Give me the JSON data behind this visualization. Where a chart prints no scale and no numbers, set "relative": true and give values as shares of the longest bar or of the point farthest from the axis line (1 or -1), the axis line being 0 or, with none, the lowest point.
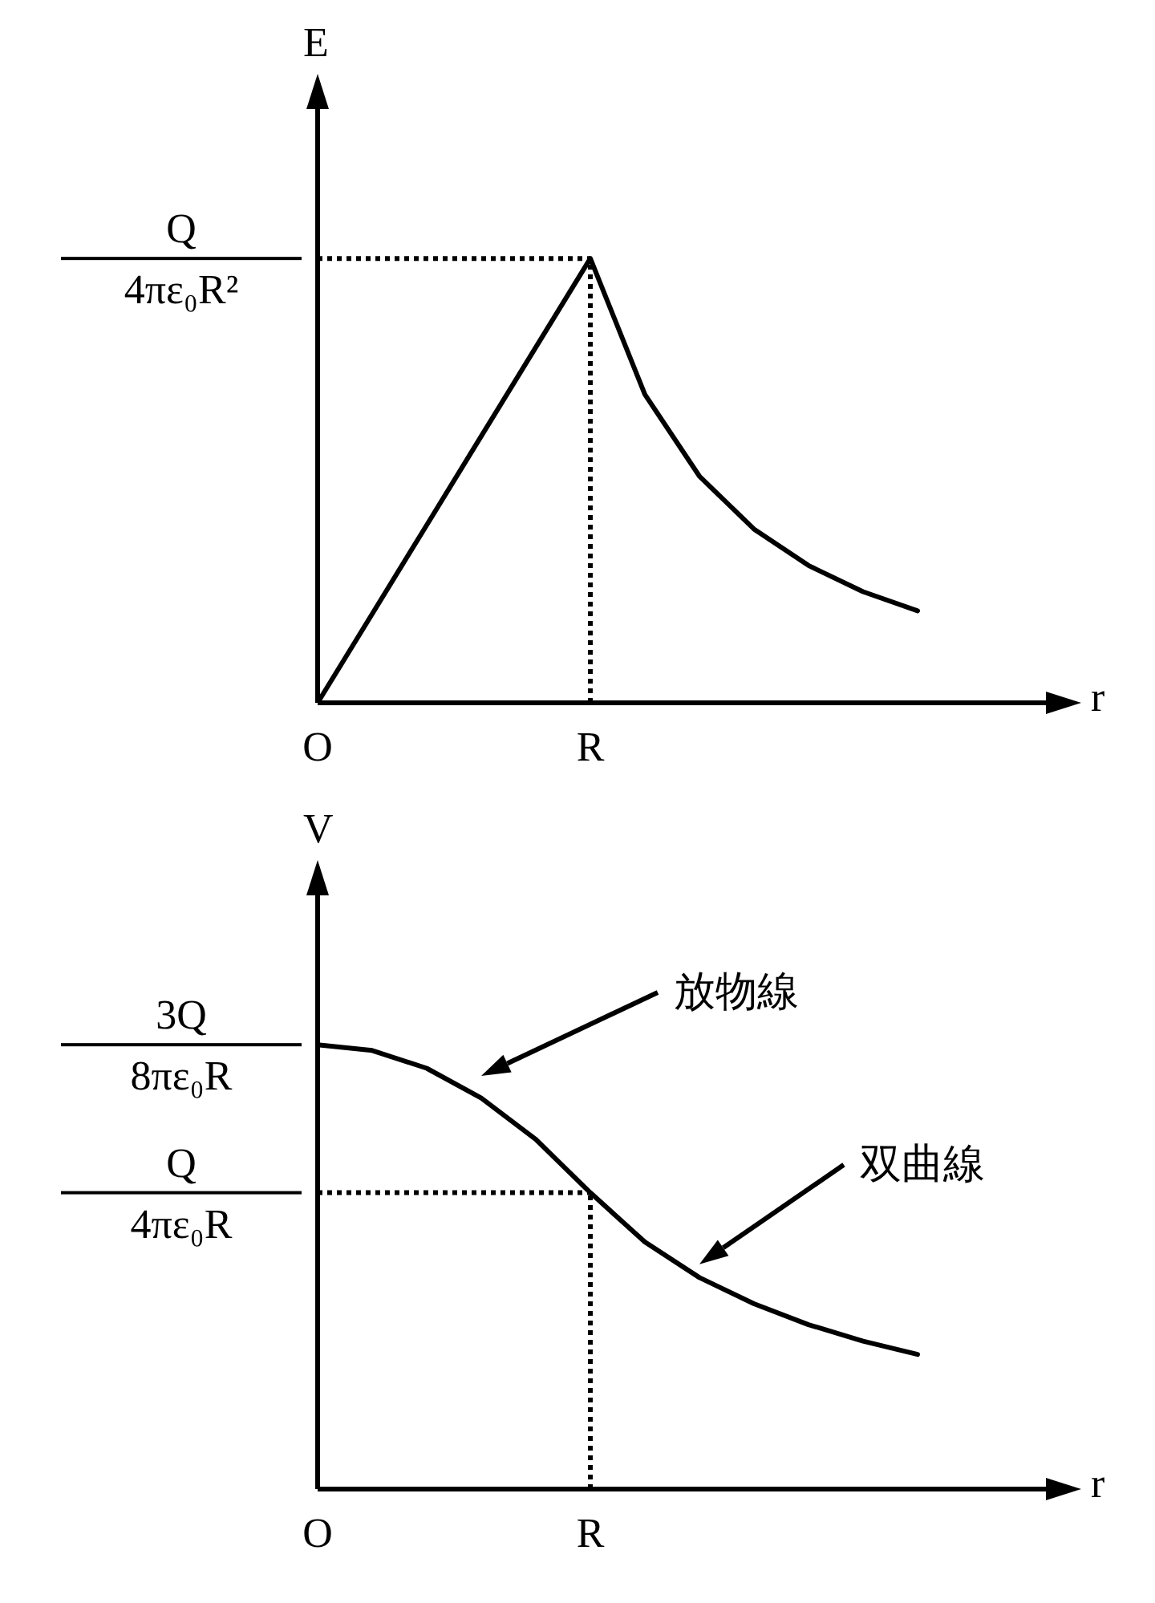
{
  "chart_data": [
    {
      "type": "line",
      "relative": true,
      "xlabel": "r",
      "ylabel": "E",
      "categories": [
        "O",
        null,
        null,
        null,
        null,
        "R",
        null,
        null,
        null,
        null,
        null,
        null
      ],
      "values": [
        0,
        0.2,
        0.4,
        0.6,
        0.8,
        1,
        0.694,
        0.51,
        0.391,
        0.309,
        0.25,
        0.207
      ],
      "color": "#000000",
      "ref_lines": [
        {
          "axis": "x",
          "value": "R",
          "line_style": "dotted"
        },
        {
          "axis": "y",
          "value": 1,
          "line_style": "dotted"
        }
      ],
      "annotations": [
        "Q",
        "4πε₀R²"
      ]
    },
    {
      "type": "line",
      "relative": true,
      "xlabel": "r",
      "ylabel": "V",
      "categories": [
        "O",
        null,
        null,
        null,
        null,
        "R",
        null,
        null,
        null,
        null,
        null,
        null
      ],
      "values": [
        1,
        0.987,
        0.947,
        0.88,
        0.787,
        0.667,
        0.556,
        0.476,
        0.417,
        0.37,
        0.333,
        0.303
      ],
      "color": "#000000",
      "ref_lines": [
        {
          "axis": "x",
          "value": "R",
          "line_style": "dotted"
        },
        {
          "axis": "y",
          "value": 0.667,
          "line_style": "dotted"
        }
      ],
      "annotations": [
        "3Q",
        "8πε₀R",
        "Q",
        "4πε₀R",
        "放物線",
        "双曲線"
      ]
    }
  ]
}
